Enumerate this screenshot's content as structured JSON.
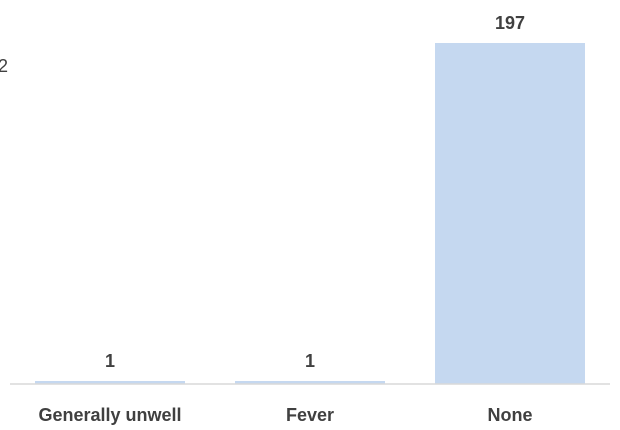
{
  "chart_data": {
    "type": "bar",
    "categories": [
      "Generally unwell",
      "Fever",
      "None"
    ],
    "values": [
      1,
      1,
      197
    ],
    "data_labels": [
      "1",
      "1",
      "197"
    ],
    "title": "",
    "xlabel": "",
    "ylabel": "",
    "ylim": [
      0,
      197
    ],
    "grid": false,
    "legend": "none",
    "colors": {
      "bar": "#c5d8f0",
      "axis": "#d9d9d9",
      "text": "#404040"
    }
  },
  "edge_fragment": "2"
}
